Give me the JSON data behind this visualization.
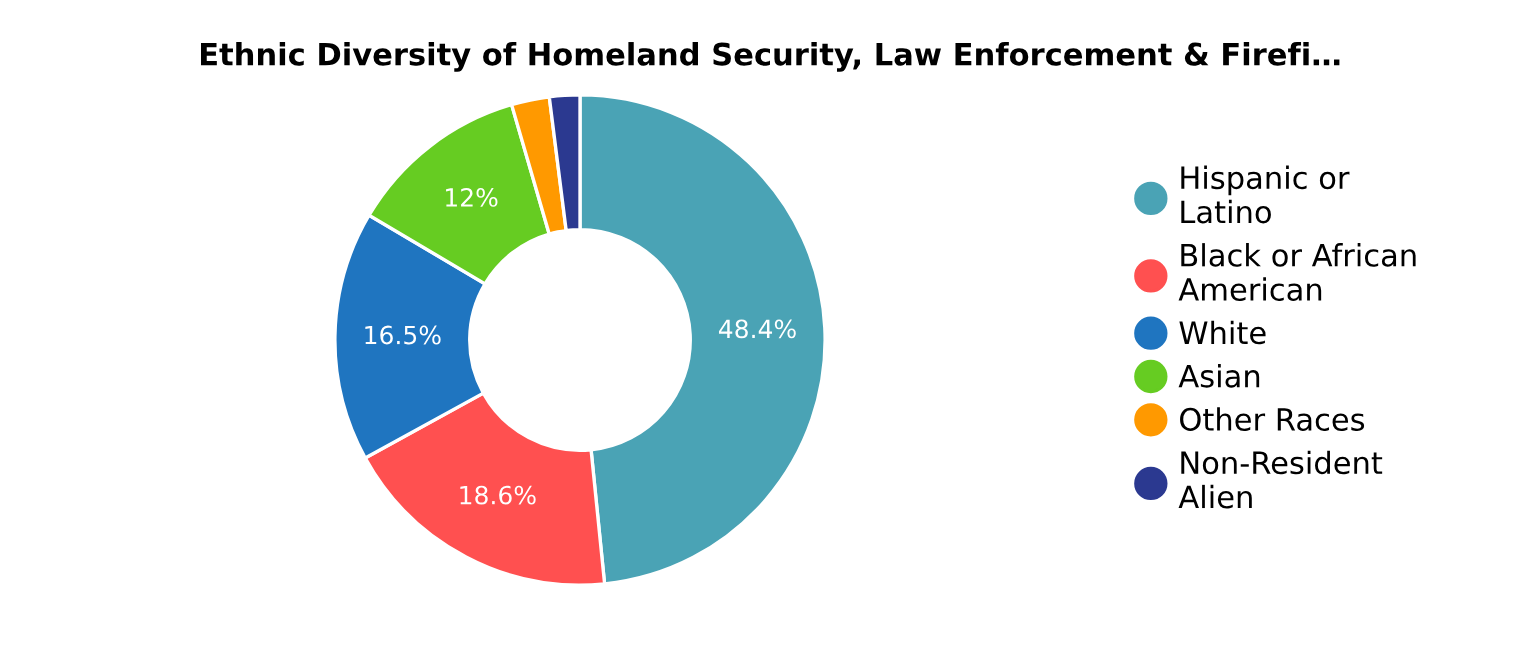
{
  "chart_data": {
    "type": "donut",
    "title": "Ethnic Diversity of Homeland Security, Law Enforcement & Firefi…",
    "categories": [
      "Hispanic or Latino",
      "Black or African American",
      "White",
      "Asian",
      "Other Races",
      "Non-Resident Alien"
    ],
    "values": [
      48.4,
      18.6,
      16.5,
      12,
      2.5,
      2.0
    ],
    "colors": [
      "#4aa3b5",
      "#ff5050",
      "#1f75c0",
      "#66cc22",
      "#ff9900",
      "#2b3990"
    ],
    "value_labels": [
      "48.4%",
      "18.6%",
      "16.5%",
      "12%",
      null,
      null
    ],
    "legend": "right"
  }
}
